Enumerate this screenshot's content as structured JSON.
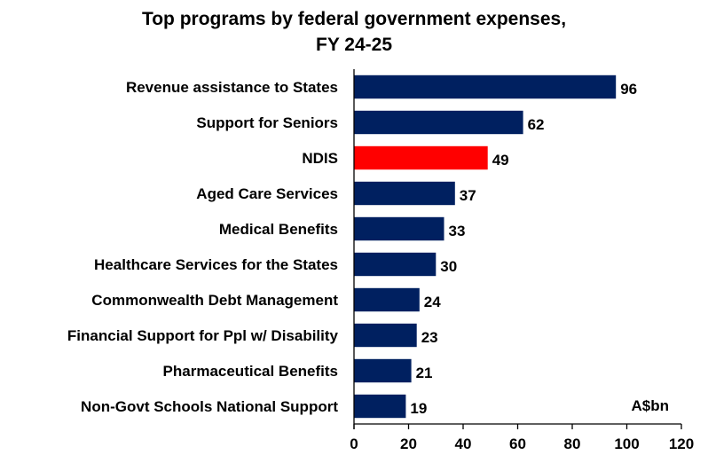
{
  "chart_data": {
    "type": "bar",
    "orientation": "horizontal",
    "title": "Top programs by federal government expenses,",
    "subtitle": "FY 24-25",
    "unit_label": "A$bn",
    "categories": [
      "Revenue assistance to States",
      "Support for Seniors",
      "NDIS",
      "Aged Care Services",
      "Medical Benefits",
      "Healthcare Services for the States",
      "Commonwealth Debt Management",
      "Financial Support for Ppl w/ Disability",
      "Pharmaceutical Benefits",
      "Non-Govt Schools National Support"
    ],
    "values": [
      96,
      62,
      49,
      37,
      33,
      30,
      24,
      23,
      21,
      19
    ],
    "highlight_index": 2,
    "xlim": [
      0,
      120
    ],
    "xticks": [
      0,
      20,
      40,
      60,
      80,
      100,
      120
    ],
    "xlabel": "",
    "ylabel": "",
    "grid": false,
    "colors": {
      "bar": "#002060",
      "highlight": "#ff0000",
      "axis": "#000000"
    }
  }
}
